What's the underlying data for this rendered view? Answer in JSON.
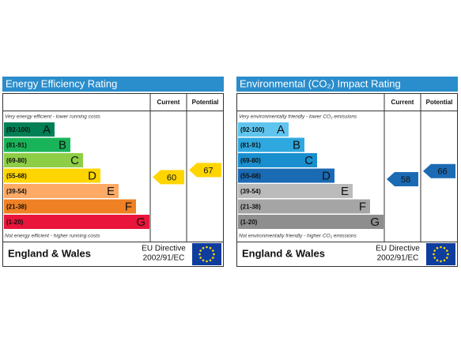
{
  "panels": [
    {
      "title": "Energy Efficiency Rating",
      "columns": [
        "Current",
        "Potential"
      ],
      "top_note": "Very energy efficient - lower running costs",
      "bottom_note": "Not energy efficient - higher running costs",
      "bands": [
        {
          "range": "(92-100)",
          "letter": "A",
          "color": "#008054"
        },
        {
          "range": "(81-91)",
          "letter": "B",
          "color": "#19b459"
        },
        {
          "range": "(69-80)",
          "letter": "C",
          "color": "#8dce46"
        },
        {
          "range": "(55-68)",
          "letter": "D",
          "color": "#ffd500"
        },
        {
          "range": "(39-54)",
          "letter": "E",
          "color": "#fcaa65"
        },
        {
          "range": "(21-38)",
          "letter": "F",
          "color": "#ef8023"
        },
        {
          "range": "(1-20)",
          "letter": "G",
          "color": "#e9153b"
        }
      ],
      "current": 60,
      "potential": 67,
      "arrow_color": "#ffd500",
      "region": "England & Wales",
      "directive": [
        "EU Directive",
        "2002/91/EC"
      ]
    },
    {
      "title": "Environmental (CO₂) Impact Rating",
      "columns": [
        "Current",
        "Potential"
      ],
      "top_note": "Very environmentally friendly - lower CO₂ emissions",
      "bottom_note": "Not environmentally friendly - higher CO₂ emissions",
      "bands": [
        {
          "range": "(92-100)",
          "letter": "A",
          "color": "#60c5ee"
        },
        {
          "range": "(81-91)",
          "letter": "B",
          "color": "#2ea8df"
        },
        {
          "range": "(69-80)",
          "letter": "C",
          "color": "#1a8fcf"
        },
        {
          "range": "(55-68)",
          "letter": "D",
          "color": "#1b6ab4"
        },
        {
          "range": "(39-54)",
          "letter": "E",
          "color": "#bbbbbb"
        },
        {
          "range": "(21-38)",
          "letter": "F",
          "color": "#a5a5a5"
        },
        {
          "range": "(1-20)",
          "letter": "G",
          "color": "#8e8e8e"
        }
      ],
      "current": 58,
      "potential": 66,
      "arrow_color": "#1b6ab4",
      "region": "England & Wales",
      "directive": [
        "EU Directive",
        "2002/91/EC"
      ]
    }
  ]
}
